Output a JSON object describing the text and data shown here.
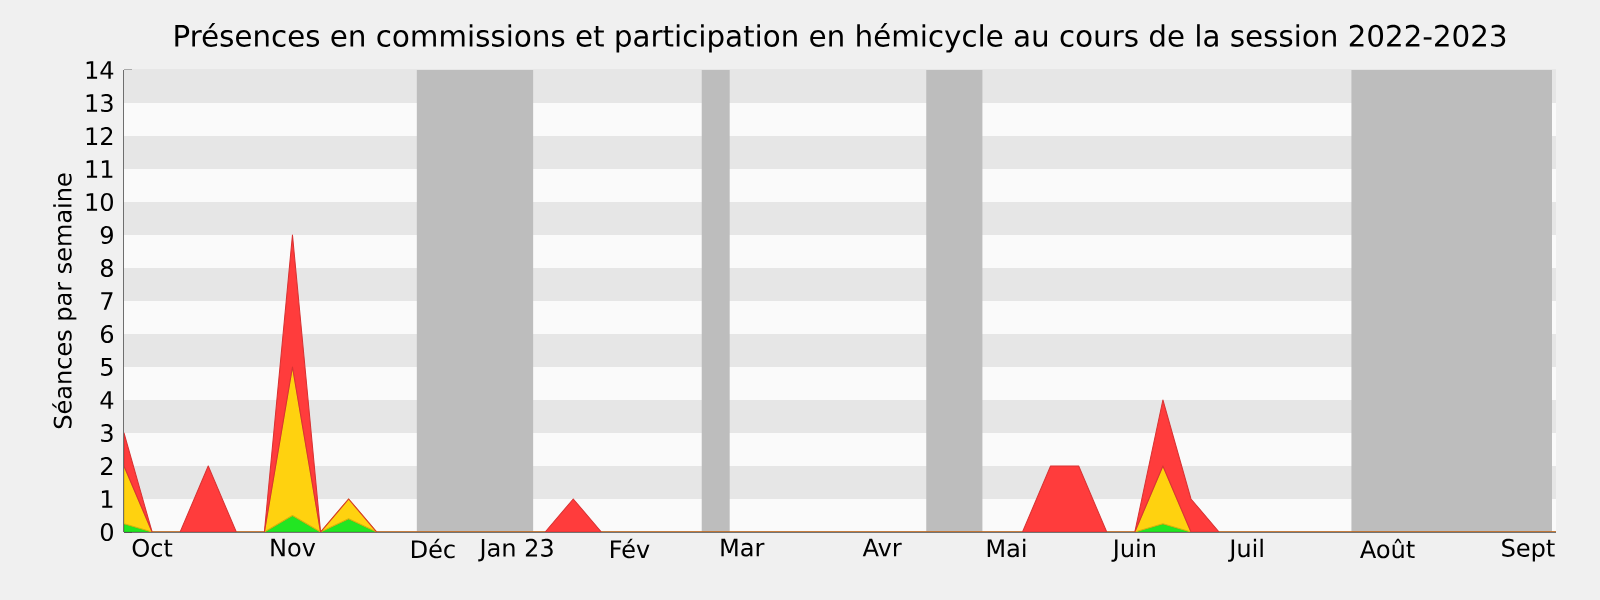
{
  "chart_data": {
    "type": "area",
    "title": "Présences en commissions et participation en hémicycle au cours de la session 2022-2023",
    "ylabel": "Séances par semaine",
    "stacked": true,
    "grid": "y",
    "x": [
      "2022-10-03",
      "2022-10-10",
      "2022-10-17",
      "2022-10-24",
      "2022-10-31",
      "2022-11-07",
      "2022-11-14",
      "2022-11-21",
      "2022-11-28",
      "2022-12-05",
      "2022-12-12",
      "2022-12-19",
      "2022-12-26",
      "2023-01-02",
      "2023-01-09",
      "2023-01-16",
      "2023-01-23",
      "2023-01-30",
      "2023-02-06",
      "2023-02-13",
      "2023-02-20",
      "2023-02-27",
      "2023-03-06",
      "2023-03-13",
      "2023-03-20",
      "2023-03-27",
      "2023-04-03",
      "2023-04-10",
      "2023-04-17",
      "2023-04-24",
      "2023-05-01",
      "2023-05-08",
      "2023-05-15",
      "2023-05-22",
      "2023-05-29",
      "2023-06-05",
      "2023-06-12",
      "2023-06-19",
      "2023-06-26",
      "2023-07-03",
      "2023-07-10",
      "2023-07-17",
      "2023-07-24",
      "2023-07-31",
      "2023-08-07",
      "2023-08-14",
      "2023-08-21",
      "2023-08-28",
      "2023-09-04",
      "2023-09-11",
      "2023-09-18",
      "2023-09-25"
    ],
    "xlim": [
      "2022-10-03",
      "2023-09-25"
    ],
    "ylim": [
      0,
      14
    ],
    "xticks": [
      {
        "value": "2022-10-10",
        "label": "Oct"
      },
      {
        "value": "2022-11-14",
        "label": "Nov"
      },
      {
        "value": "2022-12-19",
        "label": "Déc"
      },
      {
        "value": "2023-01-09",
        "label": "Jan 23"
      },
      {
        "value": "2023-02-06",
        "label": "Fév"
      },
      {
        "value": "2023-03-06",
        "label": "Mar"
      },
      {
        "value": "2023-04-10",
        "label": "Avr"
      },
      {
        "value": "2023-05-11",
        "label": "Mai"
      },
      {
        "value": "2023-06-12",
        "label": "Juin"
      },
      {
        "value": "2023-07-10",
        "label": "Juil"
      },
      {
        "value": "2023-08-14",
        "label": "Août"
      },
      {
        "value": "2023-09-18",
        "label": "Sept"
      }
    ],
    "yticks": [
      0,
      1,
      2,
      3,
      4,
      5,
      6,
      7,
      8,
      9,
      10,
      11,
      12,
      13,
      14
    ],
    "bands": [
      {
        "axis": "x",
        "from": "2022-12-15",
        "to": "2023-01-13",
        "color": "#bdbdbd"
      },
      {
        "axis": "x",
        "from": "2023-02-24",
        "to": "2023-03-03",
        "color": "#bdbdbd"
      },
      {
        "axis": "x",
        "from": "2023-04-21",
        "to": "2023-05-05",
        "color": "#bdbdbd"
      },
      {
        "axis": "x",
        "from": "2023-08-05",
        "to": "2023-09-24",
        "color": "#bdbdbd"
      }
    ],
    "series": [
      {
        "color": "#22e622",
        "values": [
          0.25,
          0,
          0,
          0,
          0,
          0,
          0.5,
          0,
          0.4,
          0,
          0,
          0,
          0,
          0,
          0,
          0,
          0,
          0,
          0,
          0,
          0,
          0,
          0,
          0,
          0,
          0,
          0,
          0,
          0,
          0,
          0,
          0,
          0,
          0,
          0,
          0,
          0,
          0.25,
          0,
          0,
          0,
          0,
          0,
          0,
          0,
          0,
          0,
          0,
          0,
          0,
          0,
          0
        ]
      },
      {
        "color": "#ffd20f",
        "values": [
          1.75,
          0,
          0,
          0,
          0,
          0,
          4.5,
          0,
          0.6,
          0,
          0,
          0,
          0,
          0,
          0,
          0,
          0,
          0,
          0,
          0,
          0,
          0,
          0,
          0,
          0,
          0,
          0,
          0,
          0,
          0,
          0,
          0,
          0,
          0,
          0,
          0,
          0,
          1.75,
          0,
          0,
          0,
          0,
          0,
          0,
          0,
          0,
          0,
          0,
          0,
          0,
          0,
          0
        ]
      },
      {
        "color": "#ff3c3c",
        "values": [
          1,
          0,
          0,
          2,
          0,
          0,
          4,
          0,
          0,
          0,
          0,
          0,
          0,
          0,
          0,
          0,
          1,
          0,
          0,
          0,
          0,
          0,
          0,
          0,
          0,
          0,
          0,
          0,
          0,
          0,
          0,
          0,
          0,
          2,
          2,
          0,
          0,
          2,
          1,
          0,
          0,
          0,
          0,
          0,
          0,
          0,
          0,
          0,
          0,
          0,
          0,
          0
        ]
      }
    ]
  }
}
